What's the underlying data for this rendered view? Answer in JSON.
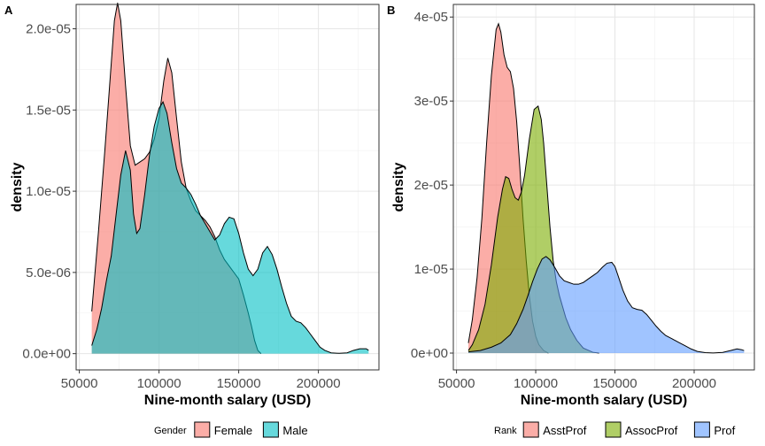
{
  "chart_data": [
    {
      "panel_tag": "A",
      "type": "area",
      "title": "",
      "xlabel": "Nine-month salary (USD)",
      "ylabel": "density",
      "xlim": [
        48000,
        238000
      ],
      "ylim": [
        -1e-06,
        2.15e-05
      ],
      "x_ticks": [
        50000,
        100000,
        150000,
        200000
      ],
      "x_tick_labels": [
        "50000",
        "100000",
        "150000",
        "200000"
      ],
      "y_ticks": [
        0,
        5e-06,
        1e-05,
        1.5e-05,
        2e-05
      ],
      "y_tick_labels": [
        "0.0e+00",
        "5.0e-06",
        "1.0e-05",
        "1.5e-05",
        "2.0e-05"
      ],
      "grid": true,
      "legend": {
        "title": "Gender",
        "position": "bottom"
      },
      "series": [
        {
          "name": "Female",
          "color": "#F8766D",
          "points": [
            [
              57800,
              2.6e-06
            ],
            [
              62000,
              7.5e-06
            ],
            [
              66000,
              1.25e-05
            ],
            [
              69000,
              1.65e-05
            ],
            [
              72000,
              2.05e-05
            ],
            [
              74000,
              2.16e-05
            ],
            [
              76000,
              2.05e-05
            ],
            [
              79000,
              1.65e-05
            ],
            [
              82000,
              1.28e-05
            ],
            [
              85000,
              1.16e-05
            ],
            [
              88000,
              1.18e-05
            ],
            [
              91000,
              1.2e-05
            ],
            [
              94000,
              1.24e-05
            ],
            [
              97000,
              1.32e-05
            ],
            [
              100000,
              1.45e-05
            ],
            [
              103000,
              1.68e-05
            ],
            [
              105500,
              1.82e-05
            ],
            [
              108000,
              1.73e-05
            ],
            [
              111000,
              1.45e-05
            ],
            [
              114000,
              1.18e-05
            ],
            [
              117000,
              1.02e-05
            ],
            [
              120000,
              9.4e-06
            ],
            [
              123000,
              8.8e-06
            ],
            [
              126000,
              8.5e-06
            ],
            [
              129000,
              8.2e-06
            ],
            [
              132000,
              7.8e-06
            ],
            [
              135000,
              7.2e-06
            ],
            [
              138000,
              6.4e-06
            ],
            [
              141000,
              5.8e-06
            ],
            [
              144000,
              5.4e-06
            ],
            [
              147000,
              5e-06
            ],
            [
              150000,
              4.6e-06
            ],
            [
              153000,
              3.6e-06
            ],
            [
              156000,
              2.5e-06
            ],
            [
              158000,
              1.7e-06
            ],
            [
              160000,
              8e-07
            ],
            [
              162000,
              2e-07
            ],
            [
              164000,
              0
            ]
          ]
        },
        {
          "name": "Male",
          "color": "#00BFC4",
          "points": [
            [
              57800,
              5e-07
            ],
            [
              61000,
              1.5e-06
            ],
            [
              64000,
              2.8e-06
            ],
            [
              67000,
              4.5e-06
            ],
            [
              70000,
              6e-06
            ],
            [
              73000,
              8.5e-06
            ],
            [
              76000,
              1.1e-05
            ],
            [
              79000,
              1.25e-05
            ],
            [
              82000,
              1.13e-05
            ],
            [
              84000,
              8.6e-06
            ],
            [
              86000,
              7.4e-06
            ],
            [
              88000,
              7.7e-06
            ],
            [
              91000,
              9.8e-06
            ],
            [
              94000,
              1.22e-05
            ],
            [
              97000,
              1.4e-05
            ],
            [
              100000,
              1.51e-05
            ],
            [
              102500,
              1.55e-05
            ],
            [
              105000,
              1.48e-05
            ],
            [
              108000,
              1.3e-05
            ],
            [
              111000,
              1.14e-05
            ],
            [
              114000,
              1.05e-05
            ],
            [
              117000,
              1.02e-05
            ],
            [
              120000,
              9.8e-06
            ],
            [
              123000,
              9.2e-06
            ],
            [
              126000,
              8.5e-06
            ],
            [
              129000,
              8e-06
            ],
            [
              132000,
              7.5e-06
            ],
            [
              135000,
              7e-06
            ],
            [
              138000,
              7.3e-06
            ],
            [
              141000,
              8e-06
            ],
            [
              144000,
              8.4e-06
            ],
            [
              147000,
              8.3e-06
            ],
            [
              150000,
              7.4e-06
            ],
            [
              153000,
              6.2e-06
            ],
            [
              156000,
              5.2e-06
            ],
            [
              159000,
              4.8e-06
            ],
            [
              162000,
              5.2e-06
            ],
            [
              165000,
              6.2e-06
            ],
            [
              168000,
              6.6e-06
            ],
            [
              171000,
              6.1e-06
            ],
            [
              174000,
              5.2e-06
            ],
            [
              177000,
              4.1e-06
            ],
            [
              180000,
              3.1e-06
            ],
            [
              183000,
              2.3e-06
            ],
            [
              186000,
              2e-06
            ],
            [
              189000,
              1.9e-06
            ],
            [
              192000,
              1.6e-06
            ],
            [
              195000,
              1.2e-06
            ],
            [
              198000,
              8e-07
            ],
            [
              201000,
              4e-07
            ],
            [
              204000,
              2e-07
            ],
            [
              208000,
              5e-08
            ],
            [
              213000,
              2e-08
            ],
            [
              218000,
              5e-08
            ],
            [
              222000,
              2e-07
            ],
            [
              226000,
              3e-07
            ],
            [
              230000,
              3e-07
            ],
            [
              231500,
              2e-07
            ]
          ]
        }
      ]
    },
    {
      "panel_tag": "B",
      "type": "area",
      "title": "",
      "xlabel": "Nine-month salary (USD)",
      "ylabel": "density",
      "xlim": [
        48000,
        238000
      ],
      "ylim": [
        -2e-06,
        4.15e-05
      ],
      "x_ticks": [
        50000,
        100000,
        150000,
        200000
      ],
      "x_tick_labels": [
        "50000",
        "100000",
        "150000",
        "200000"
      ],
      "y_ticks": [
        0,
        1e-05,
        2e-05,
        3e-05,
        4e-05
      ],
      "y_tick_labels": [
        "0e+00",
        "1e-05",
        "2e-05",
        "3e-05",
        "4e-05"
      ],
      "grid": true,
      "legend": {
        "title": "Rank",
        "position": "bottom"
      },
      "series": [
        {
          "name": "AsstProf",
          "color": "#F8766D",
          "points": [
            [
              57500,
              1.2e-06
            ],
            [
              60000,
              4e-06
            ],
            [
              63000,
              9e-06
            ],
            [
              66000,
              1.6e-05
            ],
            [
              69000,
              2.5e-05
            ],
            [
              72000,
              3.3e-05
            ],
            [
              75000,
              3.85e-05
            ],
            [
              76500,
              3.92e-05
            ],
            [
              78000,
              3.82e-05
            ],
            [
              80000,
              3.55e-05
            ],
            [
              82000,
              3.4e-05
            ],
            [
              84000,
              3.35e-05
            ],
            [
              86000,
              3.15e-05
            ],
            [
              88000,
              2.75e-05
            ],
            [
              90000,
              2.2e-05
            ],
            [
              92000,
              1.6e-05
            ],
            [
              94000,
              1.1e-05
            ],
            [
              96000,
              6.8e-06
            ],
            [
              98000,
              3.8e-06
            ],
            [
              100000,
              2e-06
            ],
            [
              102000,
              1e-06
            ],
            [
              105000,
              3e-07
            ],
            [
              108000,
              0
            ]
          ]
        },
        {
          "name": "AssocProf",
          "color": "#7CAE00",
          "points": [
            [
              57500,
              3e-07
            ],
            [
              60000,
              1e-06
            ],
            [
              64000,
              2.8e-06
            ],
            [
              68000,
              5.8e-06
            ],
            [
              72000,
              1.05e-05
            ],
            [
              76000,
              1.62e-05
            ],
            [
              79000,
              1.95e-05
            ],
            [
              81000,
              2.1e-05
            ],
            [
              83000,
              2.08e-05
            ],
            [
              85000,
              1.95e-05
            ],
            [
              87000,
              1.85e-05
            ],
            [
              89000,
              1.82e-05
            ],
            [
              91000,
              1.92e-05
            ],
            [
              93000,
              2.12e-05
            ],
            [
              96000,
              2.55e-05
            ],
            [
              99000,
              2.9e-05
            ],
            [
              101500,
              2.94e-05
            ],
            [
              103500,
              2.78e-05
            ],
            [
              105000,
              2.5e-05
            ],
            [
              107000,
              2e-05
            ],
            [
              109000,
              1.5e-05
            ],
            [
              111000,
              1.1e-05
            ],
            [
              113000,
              8.5e-06
            ],
            [
              115000,
              6.8e-06
            ],
            [
              117000,
              5.5e-06
            ],
            [
              119000,
              4.2e-06
            ],
            [
              122000,
              2.8e-06
            ],
            [
              126000,
              1.5e-06
            ],
            [
              130000,
              6e-07
            ],
            [
              136000,
              1e-07
            ],
            [
              140000,
              0
            ]
          ]
        },
        {
          "name": "Prof",
          "color": "#619CFF",
          "points": [
            [
              57500,
              1.5e-07
            ],
            [
              65000,
              3e-07
            ],
            [
              72000,
              7e-07
            ],
            [
              78000,
              1.2e-06
            ],
            [
              84000,
              2.2e-06
            ],
            [
              88000,
              3.5e-06
            ],
            [
              92000,
              5.2e-06
            ],
            [
              95000,
              6.8e-06
            ],
            [
              98000,
              8.5e-06
            ],
            [
              101000,
              1e-05
            ],
            [
              104000,
              1.12e-05
            ],
            [
              106500,
              1.15e-05
            ],
            [
              109000,
              1.11e-05
            ],
            [
              112000,
              1.02e-05
            ],
            [
              115000,
              9.2e-06
            ],
            [
              118000,
              8.6e-06
            ],
            [
              121000,
              8.4e-06
            ],
            [
              124000,
              8.2e-06
            ],
            [
              127000,
              8.2e-06
            ],
            [
              130000,
              8.4e-06
            ],
            [
              133000,
              8.8e-06
            ],
            [
              136000,
              9.2e-06
            ],
            [
              139000,
              9.6e-06
            ],
            [
              142000,
              1.02e-05
            ],
            [
              145000,
              1.07e-05
            ],
            [
              148000,
              1.08e-05
            ],
            [
              150000,
              1.03e-05
            ],
            [
              152000,
              9.2e-06
            ],
            [
              155000,
              7.5e-06
            ],
            [
              158000,
              6.2e-06
            ],
            [
              161000,
              5.4e-06
            ],
            [
              164000,
              5.2e-06
            ],
            [
              167000,
              5.1e-06
            ],
            [
              170000,
              4.6e-06
            ],
            [
              173000,
              3.9e-06
            ],
            [
              176000,
              3.2e-06
            ],
            [
              179000,
              2.6e-06
            ],
            [
              182000,
              2.1e-06
            ],
            [
              186000,
              1.7e-06
            ],
            [
              190000,
              1.3e-06
            ],
            [
              194000,
              9e-07
            ],
            [
              198000,
              5e-07
            ],
            [
              202000,
              2e-07
            ],
            [
              207000,
              5e-08
            ],
            [
              212000,
              2e-08
            ],
            [
              218000,
              8e-08
            ],
            [
              223000,
              3e-07
            ],
            [
              227000,
              5e-07
            ],
            [
              230000,
              4e-07
            ],
            [
              231500,
              3e-07
            ]
          ]
        }
      ]
    }
  ]
}
